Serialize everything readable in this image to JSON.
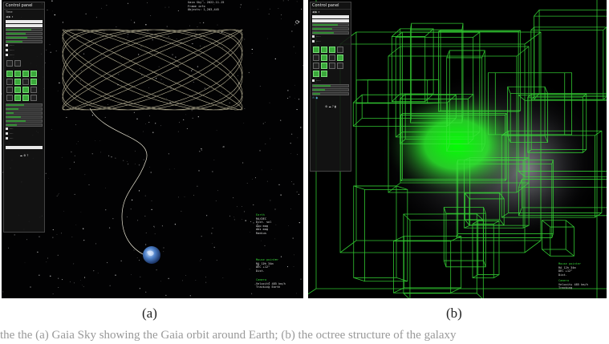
{
  "panel_a": {
    "title": "Control panel",
    "time_label": "Time",
    "header_info": "Gaia Sky 2.2.1 — Control panel",
    "focus_name": "Earth",
    "focus_info": [
      "Earth",
      "RA/DEC",
      "Dist. sol",
      "App mag",
      "Abs mag",
      "Radius"
    ],
    "mouse_title": "Mouse pointer",
    "mouse_info": [
      "RA 12h 34m",
      "DEC +12°",
      "Dist."
    ],
    "camera_title": "Camera",
    "camera_info": [
      "Velocity 485 km/h",
      "Tracking Earth"
    ],
    "top_right_info": [
      "Gaia Sky — 2022-11-15",
      "Frame info",
      "Objects: 1,203,445"
    ]
  },
  "panel_b": {
    "title": "Control panel",
    "mouse_title": "Mouse pointer",
    "mouse_info": [
      "RA 12h 34m",
      "DEC +12°",
      "Dist."
    ],
    "camera_title": "Camera",
    "camera_info": [
      "Velocity 485 km/h",
      "Tracking"
    ]
  },
  "captions": {
    "a": "(a)",
    "b": "(b)"
  },
  "paper_line": "the the (a) Gaia Sky showing the Gaia orbit around Earth; (b) the octree structure of the galaxy"
}
